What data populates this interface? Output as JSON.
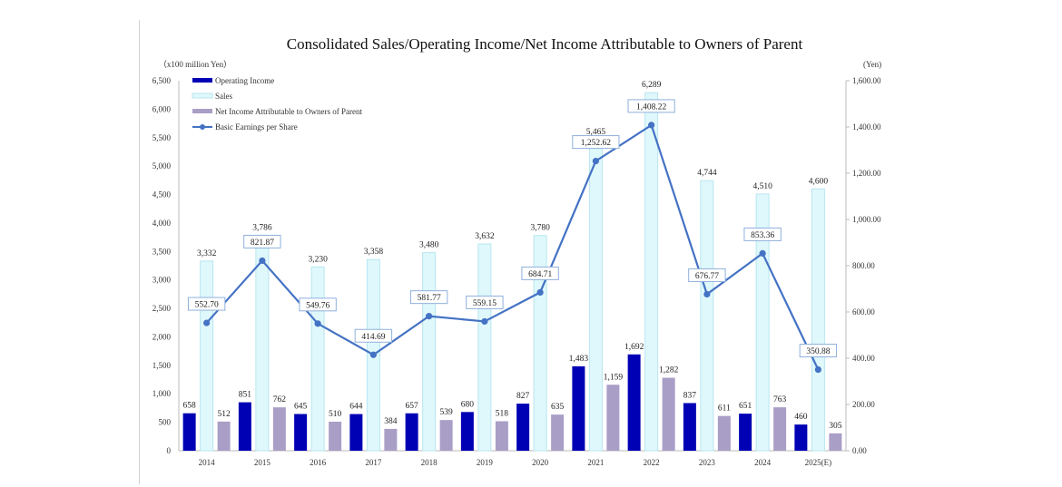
{
  "chart_data": {
    "type": "bar",
    "title": "Consolidated Sales/Operating Income/Net Income Attributable to Owners of Parent",
    "left_axis": {
      "unit_label": "（x100 million Yen）",
      "range": [
        0,
        6500
      ],
      "step": 500,
      "tick_labels": [
        "0",
        "500",
        "1,000",
        "1,500",
        "2,000",
        "2,500",
        "3,000",
        "3,500",
        "4,000",
        "4,500",
        "5,000",
        "5,500",
        "6,000",
        "6,500"
      ]
    },
    "right_axis": {
      "unit_label": "(Yen)",
      "range": [
        0,
        1600
      ],
      "step": 200,
      "tick_labels": [
        "0.00",
        "200.00",
        "400.00",
        "600.00",
        "800.00",
        "1,000.00",
        "1,200.00",
        "1,400.00",
        "1,600.00"
      ]
    },
    "categories": [
      "2014",
      "2015",
      "2016",
      "2017",
      "2018",
      "2019",
      "2020",
      "2021",
      "2022",
      "2023",
      "2024",
      "2025(E)"
    ],
    "series": [
      {
        "name": "Operating Income",
        "kind": "bar",
        "axis": "left",
        "color": "#0000b4",
        "values": [
          658,
          851,
          645,
          644,
          657,
          680,
          827,
          1483,
          1692,
          837,
          651,
          460
        ],
        "labels": [
          "658",
          "851",
          "645",
          "644",
          "657",
          "680",
          "827",
          "1,483",
          "1,692",
          "837",
          "651",
          "460"
        ]
      },
      {
        "name": "Sales",
        "kind": "bar",
        "axis": "left",
        "color": "#dff8fb",
        "edge": "#b8e6f0",
        "values": [
          3332,
          3786,
          3230,
          3358,
          3480,
          3632,
          3780,
          5465,
          6289,
          4744,
          4510,
          4600
        ],
        "labels": [
          "3,332",
          "3,786",
          "3,230",
          "3,358",
          "3,480",
          "3,632",
          "3,780",
          "5,465",
          "6,289",
          "4,744",
          "4,510",
          "4,600"
        ]
      },
      {
        "name": "Net Income Attributable to Owners of Parent",
        "kind": "bar",
        "axis": "left",
        "color": "#a99ec6",
        "values": [
          512,
          762,
          510,
          384,
          539,
          518,
          635,
          1159,
          1282,
          611,
          763,
          305
        ],
        "labels": [
          "512",
          "762",
          "510",
          "384",
          "539",
          "518",
          "635",
          "1,159",
          "1,282",
          "611",
          "763",
          "305"
        ]
      },
      {
        "name": "Basic Earnings per Share",
        "kind": "line",
        "axis": "right",
        "color": "#4472c4",
        "values": [
          552.7,
          821.87,
          549.76,
          414.69,
          581.77,
          559.15,
          684.71,
          1252.62,
          1408.22,
          676.77,
          853.36,
          350.88
        ],
        "labels": [
          "552.70",
          "821.87",
          "549.76",
          "414.69",
          "581.77",
          "559.15",
          "684.71",
          "1,252.62",
          "1,408.22",
          "676.77",
          "853.36",
          "350.88"
        ]
      }
    ],
    "legend": {
      "placement": "top-left",
      "entries": [
        "Operating Income",
        "Sales",
        "Net Income Attributable to Owners of Parent",
        "Basic Earnings per Share"
      ]
    },
    "grid": false
  }
}
